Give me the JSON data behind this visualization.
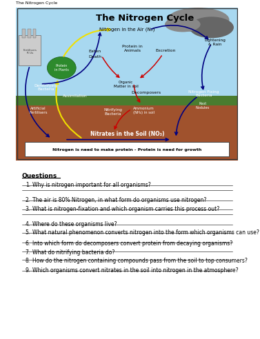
{
  "page_title": "The Nitrogen Cycle",
  "diagram_title": "The Nitrogen Cycle",
  "caption": "Nitrogen is need to make protein - Protein is need for growth",
  "questions_header": "Questions",
  "questions": [
    "Why is nitrogen important for all organisms?",
    "The air is 80% Nitrogen, in what form do organisms use nitrogen?",
    "What is nitrogen-fixation and which organism carries this process out?",
    "Where do these organisms live?",
    "What natural phenomenon converts nitrogen into the form which organisms can use?",
    "Into which form do decomposers convert protein from decaying organisms?",
    "What do nitrifying bacteria do?",
    "How do the nitrogen containing compounds pass from the soil to top consumers?",
    "Which organisms convert nitrates in the soil into nitrogen in the atmosphere?"
  ],
  "bg_color": "#ffffff",
  "sky_color": "#a8d8f0",
  "soil_color": "#a0522d",
  "ground_color": "#4a7c2f",
  "cloud_color1": "#888888",
  "cloud_color2": "#666666",
  "factory_color": "#cccccc",
  "plant_blob_color": "#2d8a2d",
  "caption_box_color": "#ffffff",
  "arrow_yellow": "#f0e000",
  "arrow_blue": "#000080",
  "arrow_red": "#cc0000"
}
